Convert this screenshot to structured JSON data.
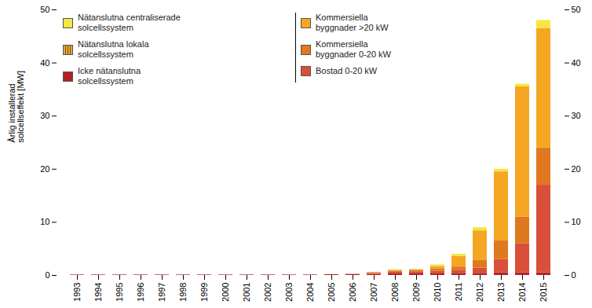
{
  "chart_data": {
    "type": "bar",
    "stacked": true,
    "categories": [
      "1993",
      "1994",
      "1995",
      "1996",
      "1997",
      "1998",
      "1999",
      "2000",
      "2001",
      "2002",
      "2003",
      "2004",
      "2005",
      "2006",
      "2007",
      "2008",
      "2009",
      "2010",
      "2011",
      "2012",
      "2013",
      "2014",
      "2015"
    ],
    "series": [
      {
        "name": "Icke nätanslutna\nsolcellssystem",
        "color": "#b22222",
        "values": [
          0.1,
          0.1,
          0.1,
          0.1,
          0.1,
          0.1,
          0.1,
          0.1,
          0.1,
          0.1,
          0.1,
          0.1,
          0.15,
          0.2,
          0.2,
          0.3,
          0.3,
          0.3,
          0.4,
          0.4,
          0.5,
          0.5,
          0.5
        ]
      },
      {
        "name": "Bostad 0-20 kW",
        "color": "#d94f3a",
        "values": [
          0.0,
          0.0,
          0.0,
          0.0,
          0.0,
          0.0,
          0.0,
          0.0,
          0.0,
          0.0,
          0.0,
          0.0,
          0.0,
          0.0,
          0.2,
          0.3,
          0.4,
          0.5,
          0.6,
          1.0,
          2.5,
          5.5,
          16.5
        ]
      },
      {
        "name": "Kommersiella\nbyggnader 0-20 kW",
        "color": "#e07820",
        "values": [
          0.0,
          0.0,
          0.0,
          0.0,
          0.0,
          0.0,
          0.0,
          0.0,
          0.0,
          0.0,
          0.0,
          0.0,
          0.0,
          0.0,
          0.1,
          0.2,
          0.2,
          0.4,
          0.6,
          1.5,
          3.5,
          5.0,
          7.0
        ]
      },
      {
        "name": "Kommersiella\nbyggnader >20 kW",
        "color": "#f5a623",
        "values": [
          0.0,
          0.0,
          0.0,
          0.0,
          0.0,
          0.0,
          0.0,
          0.0,
          0.0,
          0.0,
          0.0,
          0.0,
          0.0,
          0.0,
          0.1,
          0.2,
          0.2,
          0.5,
          2.0,
          5.5,
          13.0,
          24.5,
          22.5
        ]
      },
      {
        "name": "Nätanslutna centraliserade\nsolcellssystem",
        "color": "#f5e642",
        "values": [
          0.0,
          0.0,
          0.0,
          0.0,
          0.0,
          0.0,
          0.0,
          0.0,
          0.0,
          0.0,
          0.0,
          0.0,
          0.0,
          0.0,
          0.0,
          0.0,
          0.0,
          0.3,
          0.4,
          0.6,
          0.5,
          0.5,
          1.5
        ]
      }
    ],
    "ylabel": "Årlig installerad\nsolcellseffekt [MW]",
    "ylim": [
      0,
      50
    ],
    "yticks": [
      0,
      10,
      20,
      30,
      40,
      50
    ],
    "y2lim": [
      0,
      50
    ],
    "y2ticks": [
      0,
      10,
      20,
      30,
      40,
      50
    ],
    "annotations": [
      {
        "text": "Nätanslutna lokala\nsolcellssystem",
        "color": "#f5a623"
      }
    ],
    "legend": "upper left",
    "grid": false
  }
}
